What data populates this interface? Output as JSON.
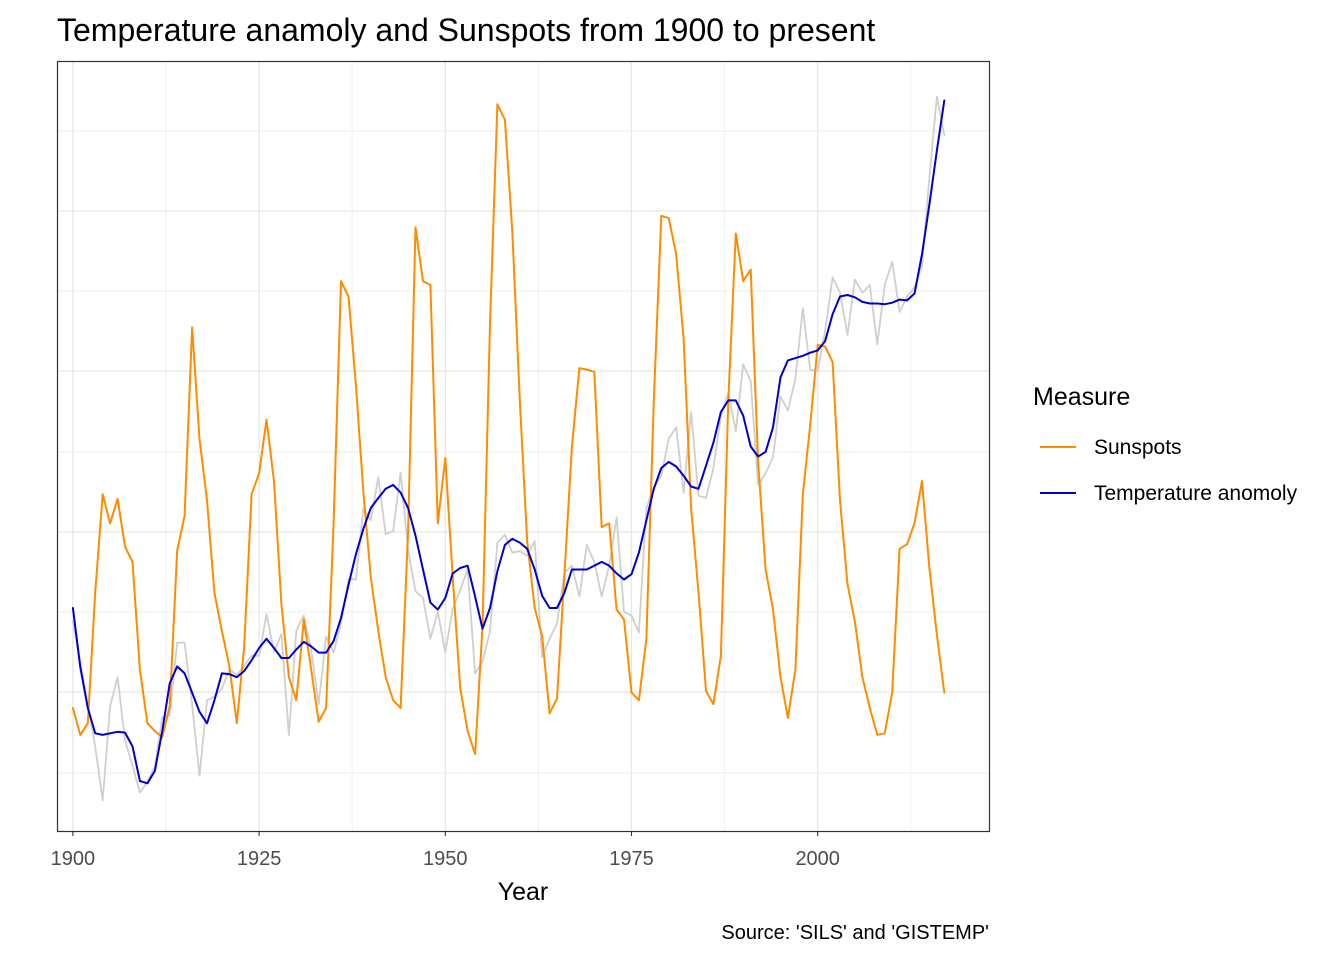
{
  "chart_data": {
    "type": "line",
    "title": "Temperature anamoly and Sunspots from 1900 to present",
    "xlabel": "Year",
    "ylabel": "",
    "caption": "Source: 'SILS' and 'GISTEMP'",
    "xlim": [
      1898,
      2023
    ],
    "ylim": [
      0,
      1
    ],
    "x_ticks": [
      1900,
      1925,
      1950,
      1975,
      2000
    ],
    "grid": true,
    "legend": {
      "title": "Measure",
      "placement": "right",
      "entries": [
        {
          "label": "Sunspots",
          "color": "#ff8c00"
        },
        {
          "label": "Temperature anomoly",
          "color": "#0000cd"
        }
      ]
    },
    "y_scale_note": "normalized",
    "series": [
      {
        "name": "Sunspots",
        "color": "#ff8c00",
        "x": [
          1900,
          1901,
          1902,
          1903,
          1904,
          1905,
          1906,
          1907,
          1908,
          1909,
          1910,
          1911,
          1912,
          1913,
          1914,
          1915,
          1916,
          1917,
          1918,
          1919,
          1920,
          1921,
          1922,
          1923,
          1924,
          1925,
          1926,
          1927,
          1928,
          1929,
          1930,
          1931,
          1932,
          1933,
          1934,
          1935,
          1936,
          1937,
          1938,
          1939,
          1940,
          1941,
          1942,
          1943,
          1944,
          1945,
          1946,
          1947,
          1948,
          1949,
          1950,
          1951,
          1952,
          1953,
          1954,
          1955,
          1956,
          1957,
          1958,
          1959,
          1960,
          1961,
          1962,
          1963,
          1964,
          1965,
          1966,
          1967,
          1968,
          1969,
          1970,
          1971,
          1972,
          1973,
          1974,
          1975,
          1976,
          1977,
          1978,
          1979,
          1980,
          1981,
          1982,
          1983,
          1984,
          1985,
          1986,
          1987,
          1988,
          1989,
          1990,
          1991,
          1992,
          1993,
          1994,
          1995,
          1996,
          1997,
          1998,
          1999,
          2000,
          2001,
          2002,
          2003,
          2004,
          2005,
          2006,
          2007,
          2008,
          2009,
          2010,
          2011,
          2012,
          2013,
          2014,
          2015,
          2016,
          2017
        ],
        "values": [
          0.16,
          0.125,
          0.14,
          0.31,
          0.438,
          0.4,
          0.432,
          0.37,
          0.35,
          0.21,
          0.14,
          0.13,
          0.122,
          0.162,
          0.365,
          0.41,
          0.655,
          0.51,
          0.43,
          0.31,
          0.26,
          0.215,
          0.14,
          0.24,
          0.438,
          0.465,
          0.535,
          0.455,
          0.295,
          0.2,
          0.17,
          0.275,
          0.21,
          0.142,
          0.16,
          0.4,
          0.715,
          0.695,
          0.58,
          0.44,
          0.33,
          0.26,
          0.2,
          0.17,
          0.16,
          0.39,
          0.785,
          0.715,
          0.71,
          0.4,
          0.485,
          0.33,
          0.186,
          0.13,
          0.1,
          0.265,
          0.66,
          0.945,
          0.925,
          0.78,
          0.56,
          0.376,
          0.29,
          0.254,
          0.153,
          0.172,
          0.335,
          0.5,
          0.602,
          0.6,
          0.597,
          0.395,
          0.4,
          0.288,
          0.275,
          0.18,
          0.17,
          0.25,
          0.56,
          0.8,
          0.797,
          0.75,
          0.64,
          0.42,
          0.31,
          0.182,
          0.165,
          0.228,
          0.56,
          0.777,
          0.715,
          0.73,
          0.48,
          0.34,
          0.288,
          0.2,
          0.147,
          0.21,
          0.437,
          0.528,
          0.632,
          0.63,
          0.61,
          0.43,
          0.321,
          0.272,
          0.2,
          0.16,
          0.125,
          0.127,
          0.18,
          0.367,
          0.373,
          0.4,
          0.455,
          0.342,
          0.255,
          0.18
        ]
      },
      {
        "name": "Temperature anomoly",
        "color": "#0000cd",
        "x": [
          1900,
          1901,
          1902,
          1903,
          1904,
          1905,
          1906,
          1907,
          1908,
          1909,
          1910,
          1911,
          1912,
          1913,
          1914,
          1915,
          1916,
          1917,
          1918,
          1919,
          1920,
          1921,
          1922,
          1923,
          1924,
          1925,
          1926,
          1927,
          1928,
          1929,
          1930,
          1931,
          1932,
          1933,
          1934,
          1935,
          1936,
          1937,
          1938,
          1939,
          1940,
          1941,
          1942,
          1943,
          1944,
          1945,
          1946,
          1947,
          1948,
          1949,
          1950,
          1951,
          1952,
          1953,
          1954,
          1955,
          1956,
          1957,
          1958,
          1959,
          1960,
          1961,
          1962,
          1963,
          1964,
          1965,
          1966,
          1967,
          1968,
          1969,
          1970,
          1971,
          1972,
          1973,
          1974,
          1975,
          1976,
          1977,
          1978,
          1979,
          1980,
          1981,
          1982,
          1983,
          1984,
          1985,
          1986,
          1987,
          1988,
          1989,
          1990,
          1991,
          1992,
          1993,
          1994,
          1995,
          1996,
          1997,
          1998,
          1999,
          2000,
          2001,
          2002,
          2003,
          2004,
          2005,
          2006,
          2007,
          2008,
          2009,
          2010,
          2011,
          2012,
          2013,
          2014,
          2015,
          2016,
          2017
        ],
        "values": [
          0.29,
          0.213,
          0.16,
          0.127,
          0.125,
          0.127,
          0.129,
          0.128,
          0.11,
          0.065,
          0.062,
          0.078,
          0.13,
          0.192,
          0.214,
          0.205,
          0.18,
          0.155,
          0.14,
          0.17,
          0.205,
          0.204,
          0.2,
          0.208,
          0.222,
          0.238,
          0.25,
          0.238,
          0.225,
          0.225,
          0.236,
          0.246,
          0.24,
          0.232,
          0.232,
          0.247,
          0.277,
          0.32,
          0.36,
          0.393,
          0.42,
          0.433,
          0.445,
          0.45,
          0.44,
          0.42,
          0.384,
          0.34,
          0.297,
          0.288,
          0.303,
          0.335,
          0.342,
          0.345,
          0.305,
          0.263,
          0.29,
          0.338,
          0.372,
          0.38,
          0.375,
          0.367,
          0.34,
          0.306,
          0.29,
          0.29,
          0.31,
          0.34,
          0.34,
          0.34,
          0.345,
          0.35,
          0.345,
          0.335,
          0.327,
          0.334,
          0.362,
          0.404,
          0.445,
          0.472,
          0.48,
          0.474,
          0.462,
          0.448,
          0.445,
          0.475,
          0.505,
          0.545,
          0.56,
          0.56,
          0.54,
          0.5,
          0.487,
          0.493,
          0.525,
          0.59,
          0.612,
          0.615,
          0.618,
          0.622,
          0.625,
          0.637,
          0.672,
          0.695,
          0.697,
          0.694,
          0.688,
          0.686,
          0.686,
          0.685,
          0.687,
          0.691,
          0.69,
          0.699,
          0.75,
          0.815,
          0.885,
          0.95
        ]
      },
      {
        "name": "",
        "color": "#cfcfcf",
        "x": [
          1900,
          1901,
          1902,
          1903,
          1904,
          1905,
          1906,
          1907,
          1908,
          1909,
          1910,
          1911,
          1912,
          1913,
          1914,
          1915,
          1916,
          1917,
          1918,
          1919,
          1920,
          1921,
          1922,
          1923,
          1924,
          1925,
          1926,
          1927,
          1928,
          1929,
          1930,
          1931,
          1932,
          1933,
          1934,
          1935,
          1936,
          1937,
          1938,
          1939,
          1940,
          1941,
          1942,
          1943,
          1944,
          1945,
          1946,
          1947,
          1948,
          1949,
          1950,
          1951,
          1952,
          1953,
          1954,
          1955,
          1956,
          1957,
          1958,
          1959,
          1960,
          1961,
          1962,
          1963,
          1964,
          1965,
          1966,
          1967,
          1968,
          1969,
          1970,
          1971,
          1972,
          1973,
          1974,
          1975,
          1976,
          1977,
          1978,
          1979,
          1980,
          1981,
          1982,
          1983,
          1984,
          1985,
          1986,
          1987,
          1988,
          1989,
          1990,
          1991,
          1992,
          1993,
          1994,
          1995,
          1996,
          1997,
          1998,
          1999,
          2000,
          2001,
          2002,
          2003,
          2004,
          2005,
          2006,
          2007,
          2008,
          2009,
          2010,
          2011,
          2012,
          2013,
          2014,
          2015,
          2016,
          2017
        ],
        "values": [
          0.272,
          0.22,
          0.165,
          0.11,
          0.04,
          0.162,
          0.2,
          0.118,
          0.085,
          0.05,
          0.064,
          0.084,
          0.148,
          0.15,
          0.245,
          0.245,
          0.165,
          0.072,
          0.17,
          0.175,
          0.185,
          0.21,
          0.203,
          0.215,
          0.228,
          0.228,
          0.282,
          0.233,
          0.256,
          0.125,
          0.261,
          0.28,
          0.236,
          0.165,
          0.253,
          0.232,
          0.27,
          0.328,
          0.327,
          0.42,
          0.404,
          0.46,
          0.386,
          0.39,
          0.466,
          0.365,
          0.312,
          0.303,
          0.25,
          0.285,
          0.232,
          0.289,
          0.313,
          0.34,
          0.205,
          0.22,
          0.26,
          0.375,
          0.385,
          0.362,
          0.364,
          0.358,
          0.377,
          0.226,
          0.25,
          0.27,
          0.336,
          0.345,
          0.305,
          0.372,
          0.35,
          0.305,
          0.345,
          0.408,
          0.285,
          0.28,
          0.258,
          0.42,
          0.447,
          0.462,
          0.51,
          0.525,
          0.44,
          0.545,
          0.436,
          0.433,
          0.472,
          0.54,
          0.57,
          0.52,
          0.607,
          0.585,
          0.45,
          0.465,
          0.486,
          0.565,
          0.547,
          0.588,
          0.68,
          0.6,
          0.598,
          0.65,
          0.72,
          0.7,
          0.645,
          0.717,
          0.7,
          0.71,
          0.633,
          0.71,
          0.74,
          0.675,
          0.695,
          0.707,
          0.735,
          0.85,
          0.955,
          0.905
        ]
      }
    ]
  }
}
